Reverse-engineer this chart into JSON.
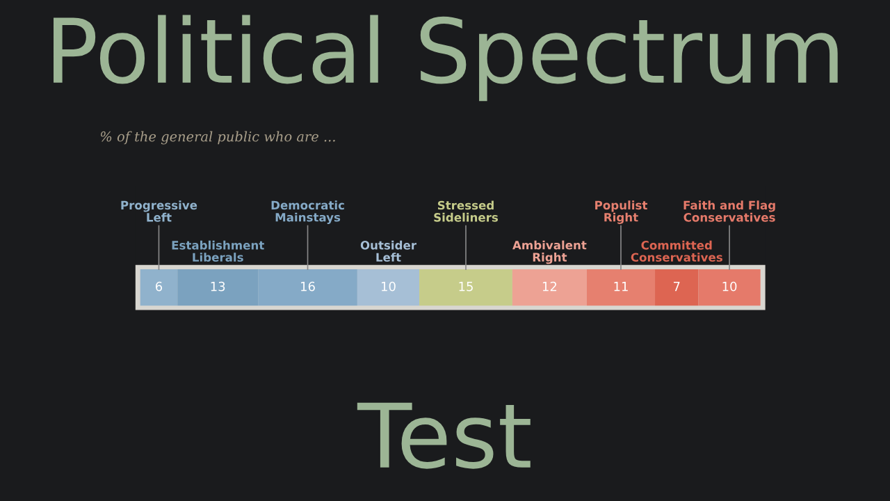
{
  "chart_data": {
    "type": "bar",
    "orientation": "horizontal",
    "stacked": true,
    "title": "Political Spectrum",
    "subtitle": "% of the general public who are ...",
    "annotations": [
      "Test"
    ],
    "categories": [
      null
    ],
    "data_labels": true,
    "legend": false,
    "grid": false,
    "tick_labels": false,
    "series": [
      {
        "name": "Progressive Left",
        "color": "#90b2cc",
        "values": [
          6
        ]
      },
      {
        "name": "Establishment Liberals",
        "color": "#7ba2bf",
        "values": [
          13
        ]
      },
      {
        "name": "Democratic Mainstays",
        "color": "#85aac7",
        "values": [
          16
        ]
      },
      {
        "name": "Outsider Left",
        "color": "#a6bfd6",
        "values": [
          10
        ]
      },
      {
        "name": "Stressed Sideliners",
        "color": "#c6cc8a",
        "values": [
          15
        ]
      },
      {
        "name": "Ambivalent Right",
        "color": "#eda294",
        "values": [
          12
        ]
      },
      {
        "name": "Populist Right",
        "color": "#e6806f",
        "values": [
          11
        ]
      },
      {
        "name": "Committed Conservatives",
        "color": "#dd6552",
        "values": [
          7
        ]
      },
      {
        "name": "Faith and Flag Conservatives",
        "color": "#e57a6a",
        "values": [
          10
        ]
      }
    ]
  }
}
